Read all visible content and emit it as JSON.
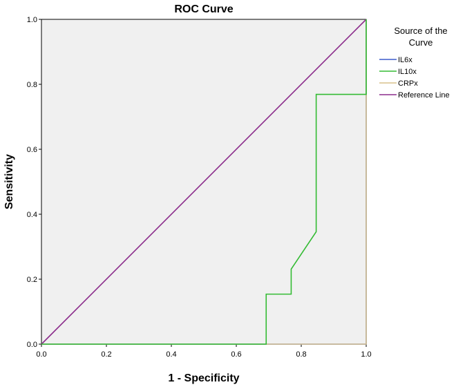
{
  "chart_data": {
    "type": "line",
    "title": "ROC Curve",
    "xlabel": "1 - Specificity",
    "ylabel": "Sensitivity",
    "xlim": [
      0.0,
      1.0
    ],
    "ylim": [
      0.0,
      1.0
    ],
    "x_ticks": [
      "0.0",
      "0.2",
      "0.4",
      "0.6",
      "0.8",
      "1.0"
    ],
    "y_ticks": [
      "0.0",
      "0.2",
      "0.4",
      "0.6",
      "0.8",
      "1.0"
    ],
    "grid": false,
    "plot_background": "#f0f0f0",
    "legend": {
      "title_line1": "Source of the",
      "title_line2": "Curve",
      "placement": "right"
    },
    "series": [
      {
        "name": "IL6x",
        "color": "#3b5ccc",
        "x": [
          0.0,
          1.0,
          1.0
        ],
        "y": [
          0.0,
          0.0,
          1.0
        ]
      },
      {
        "name": "IL10x",
        "color": "#33bb33",
        "x": [
          0.0,
          0.692,
          0.692,
          0.769,
          0.769,
          0.846,
          0.846,
          1.0,
          1.0
        ],
        "y": [
          0.0,
          0.0,
          0.154,
          0.154,
          0.231,
          0.346,
          0.769,
          0.769,
          1.0
        ]
      },
      {
        "name": "CRPx",
        "color": "#d8c08a",
        "x": [
          0.0,
          1.0,
          1.0
        ],
        "y": [
          0.0,
          0.0,
          1.0
        ]
      },
      {
        "name": "Reference Line",
        "color": "#8b2b8b",
        "x": [
          0.0,
          1.0
        ],
        "y": [
          0.0,
          1.0
        ]
      }
    ]
  }
}
